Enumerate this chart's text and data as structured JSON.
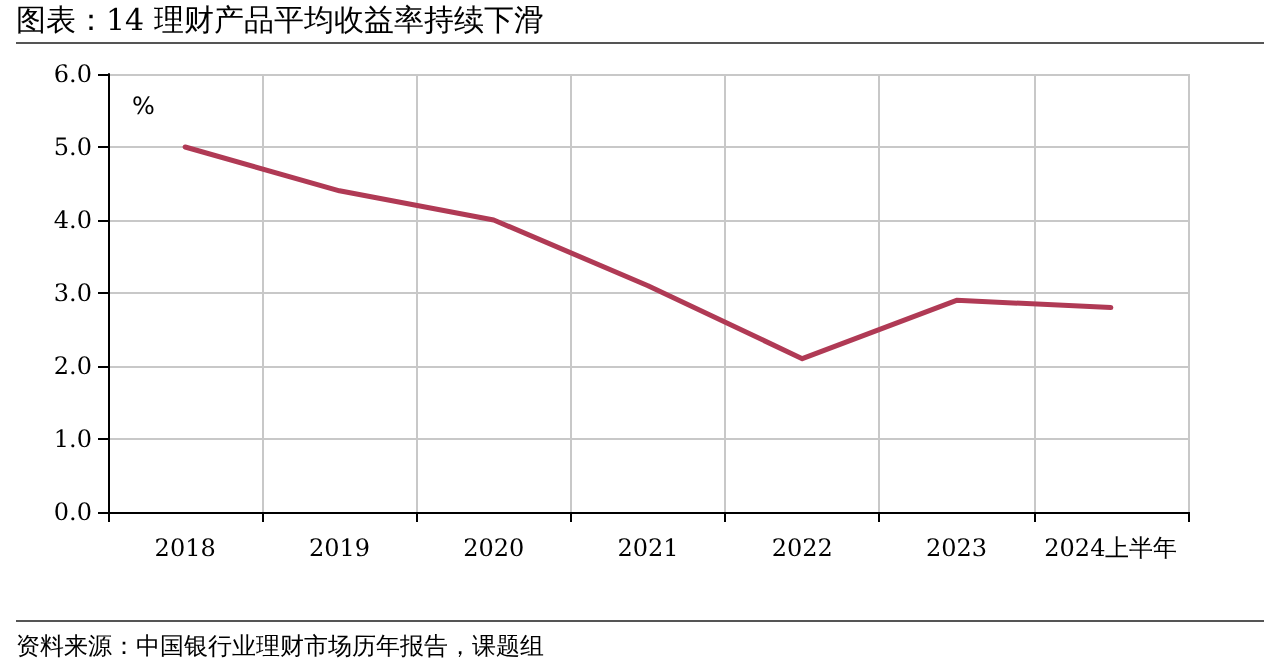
{
  "chart_data": {
    "type": "line",
    "title": "图表：14 理财产品平均收益率持续下滑",
    "ylabel": "%",
    "categories": [
      "2018",
      "2019",
      "2020",
      "2021",
      "2022",
      "2023",
      "2024上半年"
    ],
    "series": [
      {
        "color": "#b03a55",
        "values": [
          5.0,
          4.4,
          4.0,
          3.1,
          2.1,
          2.9,
          2.8
        ]
      }
    ],
    "ylim": [
      0,
      6
    ],
    "yticks": [
      {
        "value": 0,
        "label": "0.0"
      },
      {
        "value": 1,
        "label": "1.0"
      },
      {
        "value": 2,
        "label": "2.0"
      },
      {
        "value": 3,
        "label": "3.0"
      },
      {
        "value": 4,
        "label": "4.0"
      },
      {
        "value": 5,
        "label": "5.0"
      },
      {
        "value": 6,
        "label": "6.0"
      }
    ],
    "grid": true,
    "marker": "none",
    "line_style": "solid",
    "annotations": [
      "资料来源：中国银行业理财市场历年报告，课题组"
    ]
  }
}
